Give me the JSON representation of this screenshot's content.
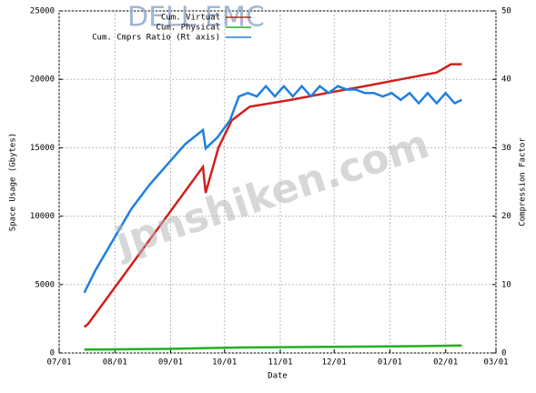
{
  "chart_data": {
    "type": "line",
    "logo": "DELL EMC",
    "watermark": "jpnshiken.com",
    "xlabel": "Date",
    "ylabel": "Space Usage (Gbytes)",
    "y2label": "Compression Factor",
    "xlim": [
      0,
      243
    ],
    "xticks": [
      {
        "value": 0,
        "label": "07/01"
      },
      {
        "value": 31,
        "label": "08/01"
      },
      {
        "value": 62,
        "label": "09/01"
      },
      {
        "value": 92,
        "label": "10/01"
      },
      {
        "value": 123,
        "label": "11/01"
      },
      {
        "value": 153,
        "label": "12/01"
      },
      {
        "value": 184,
        "label": "01/01"
      },
      {
        "value": 215,
        "label": "02/01"
      },
      {
        "value": 243,
        "label": "03/01"
      }
    ],
    "ylim": [
      0,
      25000
    ],
    "yticks": [
      0,
      5000,
      10000,
      15000,
      20000,
      25000
    ],
    "y2lim": [
      0,
      50
    ],
    "y2ticks": [
      0,
      10,
      20,
      30,
      40,
      50
    ],
    "grid": true,
    "legend": "top",
    "series": [
      {
        "name": "Cum. Virtual",
        "color": "#d0201c",
        "x": [
          14,
          16,
          80,
          81.5,
          88.6,
          96,
          106,
          129,
          149,
          170,
          190,
          210,
          218,
          224
        ],
        "values": [
          1900,
          2100,
          13600,
          11700,
          15000,
          17000,
          18000,
          18500,
          19000,
          19500,
          20000,
          20500,
          21100,
          21100
        ]
      },
      {
        "name": "Cum. Physical",
        "color": "#22b022",
        "x": [
          14,
          60,
          100,
          150,
          200,
          224
        ],
        "values": [
          250,
          300,
          400,
          450,
          500,
          550
        ]
      },
      {
        "name": "Cum. Cmprs Ratio (Rt axis)",
        "color": "#1f7fe0",
        "axis": "y2",
        "x": [
          14,
          20,
          30,
          40,
          50,
          60,
          70,
          80,
          81.5,
          88,
          95,
          100,
          105,
          110,
          115,
          120,
          125,
          130,
          135,
          140,
          145,
          150,
          155,
          160,
          165,
          170,
          175,
          180,
          185,
          190,
          195,
          200,
          205,
          210,
          215,
          220,
          224
        ],
        "values": [
          8.8,
          12,
          16.5,
          21,
          24.5,
          27.5,
          30.5,
          32.6,
          29.9,
          31.5,
          34,
          37.5,
          38,
          37.5,
          39,
          37.5,
          39,
          37.5,
          39,
          37.5,
          39,
          38,
          39,
          38.5,
          38.5,
          38,
          38,
          37.5,
          38,
          37,
          38,
          36.5,
          38,
          36.5,
          38,
          36.5,
          37
        ]
      }
    ]
  }
}
